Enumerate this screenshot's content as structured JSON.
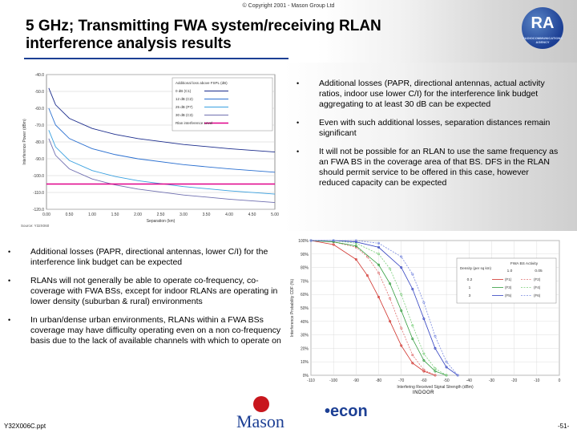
{
  "header": {
    "copyright": "© Copyright 2001 - Mason Group Ltd",
    "title_line1": "5 GHz; Transmitting FWA system/receiving RLAN",
    "title_line2": "interference analysis results",
    "logo_text": "RA",
    "logo_sub": "RADIOCOMMUNICATIONS AGENCY"
  },
  "bullets_right": [
    "Additional losses (PAPR, directional antennas, actual activity ratios, indoor use lower C/I) for the interference link budget aggregating to at least 30 dB can be expected",
    "Even with such additional losses, separation distances remain significant",
    "It will not be possible for an RLAN to use the same frequency as an FWA BS in the coverage area of that BS. DFS in the RLAN should permit service to be offered in this case, however reduced capacity can be expected"
  ],
  "bullets_left": [
    "Additional losses (PAPR, directional antennas, lower C/I) for the interference link budget can be expected",
    "RLANs will not generally be able to operate co-frequency, co-coverage with FWA BSs, except for indoor RLANs are operating in lower density (suburban & rural) environments",
    "In urban/dense urban environments, RLANs within a FWA BSs coverage may have difficulty operating even on a non co-frequency basis due to the lack of available channels with which to operate on"
  ],
  "bullet_char": "•",
  "footer": {
    "doc_id": "Y32X006C.ppt",
    "page": "-51-",
    "indoor_label": "INDOOR",
    "mason": "Mason",
    "econ": "•econ"
  },
  "chart_data": [
    {
      "type": "line",
      "title": "",
      "xlabel": "Separation (km)",
      "ylabel": "Interference Power (dBm)",
      "source": "Source: Y32X060",
      "xlim": [
        0,
        5
      ],
      "ylim": [
        -120,
        -40
      ],
      "x_ticks": [
        "0.00",
        "0.50",
        "1.00",
        "1.50",
        "2.00",
        "2.50",
        "3.00",
        "3.50",
        "4.00",
        "4.50",
        "5.00"
      ],
      "y_ticks": [
        "-40.0",
        "-50.0",
        "-60.0",
        "-70.0",
        "-80.0",
        "-90.0",
        "-100.0",
        "-110.0",
        "-120.0"
      ],
      "legend": {
        "header": "Additional loss above FSPL (dB)",
        "entries": [
          "0 dB  (C1)",
          "12 dB  (C2)",
          "25 dB  (P7)",
          "30 dB  (C3)",
          "Rlan interference Level"
        ]
      },
      "series": [
        {
          "name": "0 dB (C1)",
          "color": "#1b2c8c",
          "x": [
            0.05,
            0.2,
            0.5,
            1.0,
            1.5,
            2.0,
            3.0,
            4.0,
            5.0
          ],
          "y": [
            -48,
            -58,
            -66,
            -72,
            -75.5,
            -78,
            -81.5,
            -84,
            -86
          ]
        },
        {
          "name": "12 dB (C2)",
          "color": "#2a6fd0",
          "x": [
            0.05,
            0.2,
            0.5,
            1.0,
            1.5,
            2.0,
            3.0,
            4.0,
            5.0
          ],
          "y": [
            -60,
            -70,
            -78,
            -84,
            -87.5,
            -90,
            -93.5,
            -96,
            -98
          ]
        },
        {
          "name": "25 dB (P7)",
          "color": "#39a0e0",
          "x": [
            0.05,
            0.2,
            0.5,
            1.0,
            1.5,
            2.0,
            3.0,
            4.0,
            5.0
          ],
          "y": [
            -73,
            -83,
            -91,
            -97,
            -100.5,
            -103,
            -106.5,
            -109,
            -111
          ]
        },
        {
          "name": "30 dB (C3)",
          "color": "#6f6fb0",
          "x": [
            0.05,
            0.2,
            0.5,
            1.0,
            1.5,
            2.0,
            3.0,
            4.0,
            5.0
          ],
          "y": [
            -78,
            -88,
            -96,
            -102,
            -105.5,
            -108,
            -111.5,
            -114,
            -116
          ]
        },
        {
          "name": "Rlan interference Level",
          "color": "#e0008a",
          "x": [
            0,
            5
          ],
          "y": [
            -105,
            -105
          ]
        }
      ]
    },
    {
      "type": "line",
      "title": "",
      "xlabel": "Interfering Received Signal Strength (dBm)",
      "ylabel": "Interference Probability CDF (%)",
      "xlim": [
        -110,
        0
      ],
      "ylim": [
        0,
        100
      ],
      "x_ticks": [
        "-110",
        "-100",
        "-90",
        "-80",
        "-70",
        "-60",
        "-50",
        "-40",
        "-30",
        "-20",
        "-10",
        "0"
      ],
      "y_ticks": [
        "0%",
        "10%",
        "20%",
        "30%",
        "40%",
        "50%",
        "60%",
        "70%",
        "80%",
        "90%",
        "100%"
      ],
      "legend": {
        "col_header": "FWA BS Activity",
        "row_header": "Density (per sq km)",
        "cols": [
          "1.0",
          "0.05"
        ],
        "rows": [
          {
            "density": "0.2",
            "a": "(F1)",
            "b": "(F2)"
          },
          {
            "density": "1",
            "a": "(F3)",
            "b": "(F4)"
          },
          {
            "density": "3",
            "a": "(F5)",
            "b": "(F6)"
          }
        ]
      },
      "series": [
        {
          "name": "F1",
          "color": "#d0302a",
          "x": [
            -110,
            -100,
            -90,
            -85,
            -80,
            -75,
            -70,
            -65,
            -60,
            -55
          ],
          "y": [
            100,
            97,
            86,
            74,
            58,
            40,
            22,
            9,
            3,
            0
          ]
        },
        {
          "name": "F2",
          "color": "#e07070",
          "x": [
            -110,
            -100,
            -90,
            -85,
            -80,
            -75,
            -70,
            -65,
            -60,
            -55
          ],
          "y": [
            100,
            99,
            95,
            88,
            76,
            57,
            35,
            15,
            4,
            0
          ]
        },
        {
          "name": "F3",
          "color": "#2e9a3a",
          "x": [
            -110,
            -100,
            -90,
            -80,
            -75,
            -70,
            -65,
            -60,
            -55,
            -50
          ],
          "y": [
            100,
            99,
            96,
            82,
            68,
            48,
            27,
            11,
            3,
            0
          ]
        },
        {
          "name": "F4",
          "color": "#7ccf7c",
          "x": [
            -110,
            -100,
            -90,
            -80,
            -75,
            -70,
            -65,
            -60,
            -55,
            -50
          ],
          "y": [
            100,
            100,
            98,
            90,
            79,
            60,
            37,
            16,
            5,
            0
          ]
        },
        {
          "name": "F5",
          "color": "#3040c0",
          "x": [
            -110,
            -100,
            -90,
            -80,
            -70,
            -65,
            -60,
            -55,
            -50,
            -45
          ],
          "y": [
            100,
            100,
            99,
            95,
            80,
            64,
            42,
            20,
            6,
            0
          ]
        },
        {
          "name": "F6",
          "color": "#7a8ae0",
          "x": [
            -110,
            -100,
            -90,
            -80,
            -70,
            -65,
            -60,
            -55,
            -50,
            -45
          ],
          "y": [
            100,
            100,
            100,
            98,
            88,
            75,
            54,
            29,
            10,
            0
          ]
        }
      ]
    }
  ]
}
